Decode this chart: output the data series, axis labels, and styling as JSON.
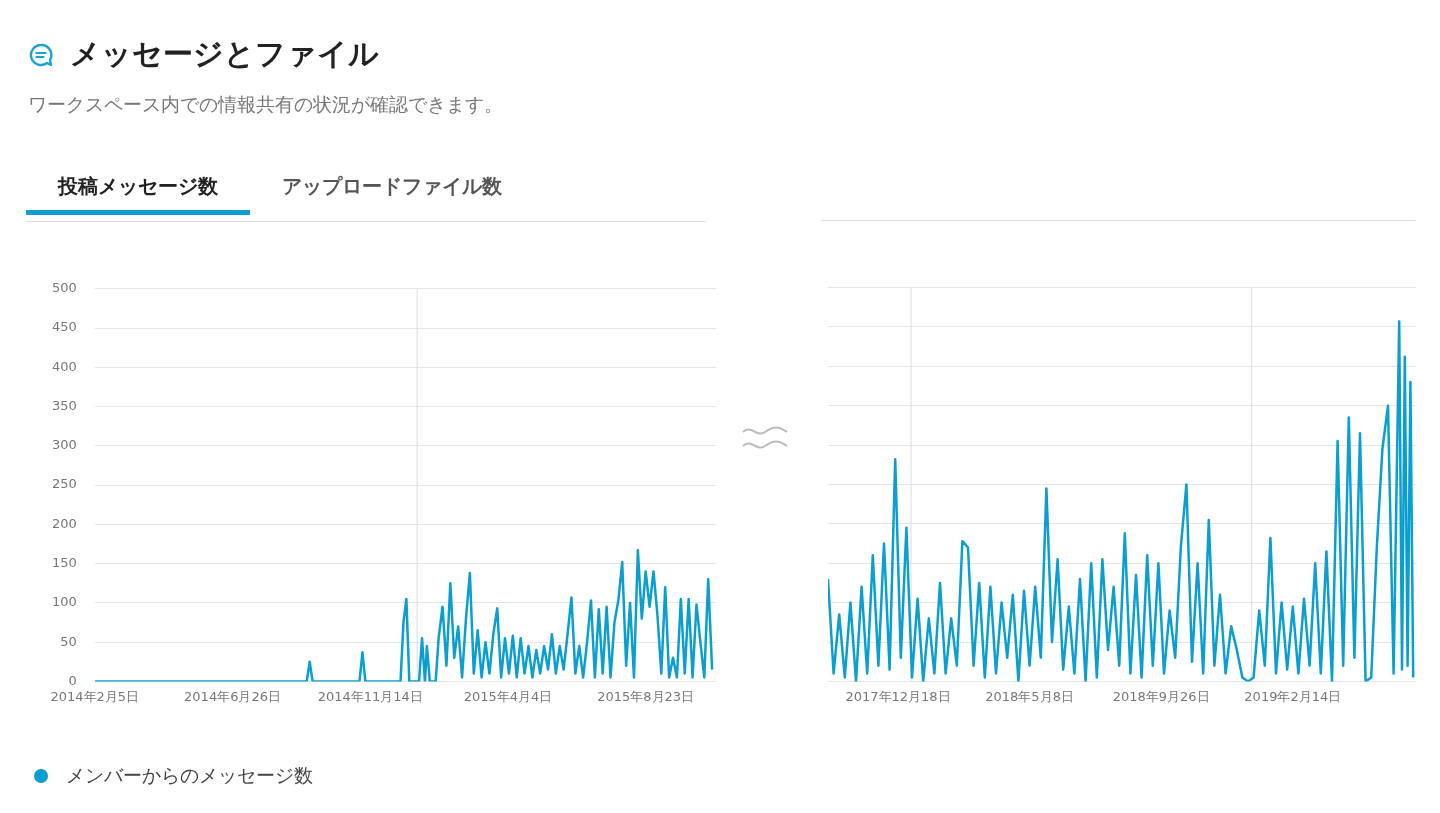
{
  "chart_data": [
    {
      "type": "line",
      "title": "メッセージとファイル",
      "subtitle": "ワークスペース内での情報共有の状況が確認できます。",
      "annotations": [
        "投稿メッセージ数",
        "アップロードファイル数"
      ],
      "legend": "bottom",
      "grid": "y",
      "ylim": [
        0,
        500
      ],
      "yticks": [
        0,
        50,
        100,
        150,
        200,
        250,
        300,
        350,
        400,
        450,
        500
      ],
      "xlim": [
        "2014-02-05",
        "2015-11-03"
      ],
      "xticks": [
        {
          "value": "2014-02-05",
          "label": "2014年2月5日"
        },
        {
          "value": "2014-06-26",
          "label": "2014年6月26日"
        },
        {
          "value": "2014-11-14",
          "label": "2014年11月14日"
        },
        {
          "value": "2015-04-04",
          "label": "2015年4月4日"
        },
        {
          "value": "2015-08-23",
          "label": "2015年8月23日"
        }
      ],
      "ref_lines": [
        {
          "axis": "x",
          "value": "2015-01-01",
          "color": "#dddddd"
        }
      ],
      "series": [
        {
          "name": "メンバーからのメッセージ数",
          "color": "#0a9fd0",
          "x": [
            "2014-02-05",
            "2014-09-10",
            "2014-09-13",
            "2014-09-16",
            "2014-11-03",
            "2014-11-06",
            "2014-11-09",
            "2014-12-15",
            "2014-12-18",
            "2014-12-21",
            "2014-12-24",
            "2015-01-03",
            "2015-01-06",
            "2015-01-09",
            "2015-01-11",
            "2015-01-14",
            "2015-01-20",
            "2015-01-23",
            "2015-01-27",
            "2015-01-31",
            "2015-02-04",
            "2015-02-08",
            "2015-02-12",
            "2015-02-16",
            "2015-02-20",
            "2015-02-24",
            "2015-02-28",
            "2015-03-04",
            "2015-03-08",
            "2015-03-12",
            "2015-03-16",
            "2015-03-20",
            "2015-03-24",
            "2015-03-28",
            "2015-04-01",
            "2015-04-05",
            "2015-04-09",
            "2015-04-13",
            "2015-04-17",
            "2015-04-21",
            "2015-04-25",
            "2015-04-29",
            "2015-05-03",
            "2015-05-07",
            "2015-05-11",
            "2015-05-15",
            "2015-05-19",
            "2015-05-23",
            "2015-05-27",
            "2015-05-31",
            "2015-06-04",
            "2015-06-08",
            "2015-06-12",
            "2015-06-16",
            "2015-06-20",
            "2015-06-24",
            "2015-06-28",
            "2015-07-02",
            "2015-07-06",
            "2015-07-10",
            "2015-07-14",
            "2015-07-18",
            "2015-07-22",
            "2015-07-26",
            "2015-07-30",
            "2015-08-03",
            "2015-08-07",
            "2015-08-11",
            "2015-08-15",
            "2015-08-19",
            "2015-08-23",
            "2015-08-27",
            "2015-08-31",
            "2015-09-04",
            "2015-09-08",
            "2015-09-12",
            "2015-09-16",
            "2015-09-20",
            "2015-09-24",
            "2015-09-28",
            "2015-10-02",
            "2015-10-06",
            "2015-10-10",
            "2015-10-14",
            "2015-10-18",
            "2015-10-22",
            "2015-10-26",
            "2015-10-30"
          ],
          "values": [
            0,
            0,
            25,
            0,
            0,
            37,
            0,
            0,
            75,
            105,
            0,
            0,
            55,
            0,
            45,
            0,
            0,
            55,
            95,
            20,
            125,
            30,
            70,
            5,
            80,
            138,
            10,
            65,
            5,
            50,
            10,
            60,
            93,
            5,
            55,
            10,
            58,
            5,
            55,
            10,
            45,
            5,
            40,
            10,
            45,
            15,
            60,
            10,
            45,
            15,
            60,
            107,
            10,
            45,
            5,
            50,
            103,
            5,
            92,
            10,
            95,
            5,
            75,
            103,
            152,
            20,
            100,
            5,
            167,
            80,
            140,
            95,
            140,
            85,
            10,
            120,
            5,
            30,
            5,
            105,
            10,
            105,
            5,
            98,
            50,
            5,
            130,
            15
          ]
        }
      ]
    },
    {
      "type": "line",
      "tick_labels": "x",
      "grid": "y",
      "ylim": [
        0,
        500
      ],
      "yticks": [
        0,
        50,
        100,
        150,
        200,
        250,
        300,
        350,
        400,
        450,
        500
      ],
      "xlim": [
        "2017-10-04",
        "2019-06-26"
      ],
      "xticks": [
        {
          "value": "2017-12-18",
          "label": "2017年12月18日"
        },
        {
          "value": "2018-05-08",
          "label": "2018年5月8日"
        },
        {
          "value": "2018-09-26",
          "label": "2018年9月26日"
        },
        {
          "value": "2019-02-14",
          "label": "2019年2月14日"
        }
      ],
      "ref_lines": [
        {
          "axis": "x",
          "value": "2018-01-01",
          "color": "#dddddd"
        },
        {
          "axis": "x",
          "value": "2019-01-01",
          "color": "#dddddd"
        }
      ],
      "series": [
        {
          "color": "#0a9fd0",
          "x": [
            "2017-10-04",
            "2017-10-10",
            "2017-10-16",
            "2017-10-22",
            "2017-10-28",
            "2017-11-03",
            "2017-11-09",
            "2017-11-15",
            "2017-11-21",
            "2017-11-27",
            "2017-12-03",
            "2017-12-09",
            "2017-12-15",
            "2017-12-21",
            "2017-12-27",
            "2018-01-02",
            "2018-01-08",
            "2018-01-14",
            "2018-01-20",
            "2018-01-26",
            "2018-02-01",
            "2018-02-07",
            "2018-02-13",
            "2018-02-19",
            "2018-02-25",
            "2018-03-03",
            "2018-03-09",
            "2018-03-15",
            "2018-03-21",
            "2018-03-27",
            "2018-04-02",
            "2018-04-08",
            "2018-04-14",
            "2018-04-20",
            "2018-04-26",
            "2018-05-02",
            "2018-05-08",
            "2018-05-14",
            "2018-05-20",
            "2018-05-26",
            "2018-06-01",
            "2018-06-07",
            "2018-06-13",
            "2018-06-19",
            "2018-06-25",
            "2018-07-01",
            "2018-07-07",
            "2018-07-13",
            "2018-07-19",
            "2018-07-25",
            "2018-07-31",
            "2018-08-06",
            "2018-08-12",
            "2018-08-18",
            "2018-08-24",
            "2018-08-30",
            "2018-09-05",
            "2018-09-11",
            "2018-09-17",
            "2018-09-23",
            "2018-09-29",
            "2018-10-05",
            "2018-10-11",
            "2018-10-17",
            "2018-10-23",
            "2018-10-29",
            "2018-11-04",
            "2018-11-10",
            "2018-11-16",
            "2018-11-22",
            "2018-11-28",
            "2018-12-04",
            "2018-12-10",
            "2018-12-16",
            "2018-12-22",
            "2018-12-28",
            "2019-01-03",
            "2019-01-09",
            "2019-01-15",
            "2019-01-21",
            "2019-01-27",
            "2019-02-02",
            "2019-02-08",
            "2019-02-14",
            "2019-02-20",
            "2019-02-26",
            "2019-03-04",
            "2019-03-10",
            "2019-03-16",
            "2019-03-22",
            "2019-03-28",
            "2019-04-03",
            "2019-04-09",
            "2019-04-15",
            "2019-04-21",
            "2019-04-27",
            "2019-05-03",
            "2019-05-09",
            "2019-05-15",
            "2019-05-21",
            "2019-05-27",
            "2019-06-02",
            "2019-06-08",
            "2019-06-11",
            "2019-06-14",
            "2019-06-17",
            "2019-06-20",
            "2019-06-23"
          ],
          "values": [
            130,
            10,
            85,
            5,
            100,
            0,
            120,
            10,
            160,
            20,
            175,
            15,
            282,
            30,
            195,
            5,
            105,
            0,
            80,
            10,
            125,
            10,
            80,
            20,
            178,
            170,
            20,
            125,
            5,
            120,
            10,
            100,
            30,
            110,
            0,
            115,
            20,
            120,
            30,
            245,
            50,
            155,
            15,
            95,
            10,
            130,
            0,
            150,
            5,
            155,
            40,
            120,
            20,
            188,
            10,
            135,
            5,
            160,
            20,
            150,
            10,
            90,
            30,
            170,
            250,
            25,
            150,
            10,
            205,
            20,
            110,
            10,
            70,
            40,
            5,
            0,
            5,
            90,
            20,
            182,
            10,
            100,
            15,
            95,
            10,
            105,
            20,
            150,
            10,
            165,
            0,
            305,
            20,
            335,
            30,
            315,
            0,
            5,
            170,
            295,
            350,
            10,
            457,
            15,
            412,
            20,
            380,
            5
          ]
        }
      ]
    }
  ]
}
